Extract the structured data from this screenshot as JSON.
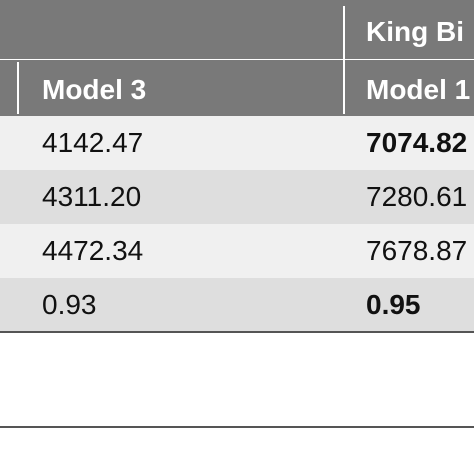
{
  "table": {
    "group_header": "King Bi",
    "columns": [
      "Model 3",
      "Model 1"
    ],
    "rows": [
      {
        "c1": "4142.47",
        "c2": "7074.82"
      },
      {
        "c1": "4311.20",
        "c2": "7280.61"
      },
      {
        "c1": "4472.34",
        "c2": "7678.87"
      },
      {
        "c1": "0.93",
        "c2": "0.95"
      }
    ]
  }
}
